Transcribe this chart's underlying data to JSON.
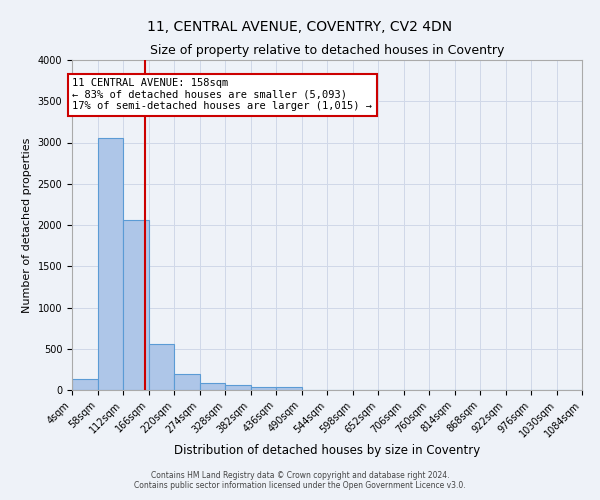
{
  "title": "11, CENTRAL AVENUE, COVENTRY, CV2 4DN",
  "subtitle": "Size of property relative to detached houses in Coventry",
  "xlabel": "Distribution of detached houses by size in Coventry",
  "ylabel": "Number of detached properties",
  "bin_edges": [
    4,
    58,
    112,
    166,
    220,
    274,
    328,
    382,
    436,
    490,
    544,
    598,
    652,
    706,
    760,
    814,
    868,
    922,
    976,
    1030,
    1084
  ],
  "bar_heights": [
    130,
    3060,
    2060,
    560,
    200,
    80,
    60,
    40,
    40,
    0,
    0,
    0,
    0,
    0,
    0,
    0,
    0,
    0,
    0,
    0
  ],
  "bar_color": "#aec6e8",
  "bar_edgecolor": "#5b9bd5",
  "grid_color": "#d0d8e8",
  "background_color": "#eef2f8",
  "red_line_x": 158,
  "annotation_title": "11 CENTRAL AVENUE: 158sqm",
  "annotation_line1": "← 83% of detached houses are smaller (5,093)",
  "annotation_line2": "17% of semi-detached houses are larger (1,015) →",
  "annotation_box_color": "#ffffff",
  "annotation_border_color": "#cc0000",
  "red_line_color": "#cc0000",
  "ylim": [
    0,
    4000
  ],
  "yticks": [
    0,
    500,
    1000,
    1500,
    2000,
    2500,
    3000,
    3500,
    4000
  ],
  "footer_line1": "Contains HM Land Registry data © Crown copyright and database right 2024.",
  "footer_line2": "Contains public sector information licensed under the Open Government Licence v3.0.",
  "title_fontsize": 10,
  "subtitle_fontsize": 9,
  "tick_label_fontsize": 7,
  "ylabel_fontsize": 8,
  "xlabel_fontsize": 8.5,
  "annotation_fontsize": 7.5,
  "footer_fontsize": 5.5
}
